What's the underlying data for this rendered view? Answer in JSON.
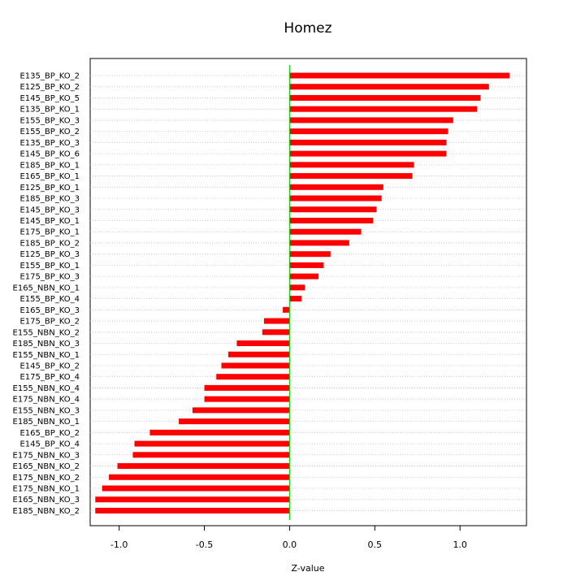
{
  "chart_data": {
    "type": "bar",
    "orientation": "horizontal",
    "title": "Homez",
    "xlabel": "Z-value",
    "ylabel": "",
    "xlim": [
      -1.17,
      1.39
    ],
    "xticks": [
      -1.0,
      -0.5,
      0.0,
      0.5,
      1.0
    ],
    "xtick_labels": [
      "-1.0",
      "-0.5",
      "0.0",
      "0.5",
      "1.0"
    ],
    "grid": "horizontal dotted",
    "bar_color": "#ff0000",
    "zero_line_color": "#00cc00",
    "categories": [
      "E135_BP_KO_2",
      "E125_BP_KO_2",
      "E145_BP_KO_5",
      "E135_BP_KO_1",
      "E155_BP_KO_3",
      "E155_BP_KO_2",
      "E135_BP_KO_3",
      "E145_BP_KO_6",
      "E185_BP_KO_1",
      "E165_BP_KO_1",
      "E125_BP_KO_1",
      "E185_BP_KO_3",
      "E145_BP_KO_3",
      "E145_BP_KO_1",
      "E175_BP_KO_1",
      "E185_BP_KO_2",
      "E125_BP_KO_3",
      "E155_BP_KO_1",
      "E175_BP_KO_3",
      "E165_NBN_KO_1",
      "E155_BP_KO_4",
      "E165_BP_KO_3",
      "E175_BP_KO_2",
      "E155_NBN_KO_2",
      "E185_NBN_KO_3",
      "E155_NBN_KO_1",
      "E145_BP_KO_2",
      "E175_BP_KO_4",
      "E155_NBN_KO_4",
      "E175_NBN_KO_4",
      "E155_NBN_KO_3",
      "E185_NBN_KO_1",
      "E165_BP_KO_2",
      "E145_BP_KO_4",
      "E175_NBN_KO_3",
      "E165_NBN_KO_2",
      "E175_NBN_KO_2",
      "E175_NBN_KO_1",
      "E165_NBN_KO_3",
      "E185_NBN_KO_2"
    ],
    "values": [
      1.29,
      1.17,
      1.12,
      1.1,
      0.96,
      0.93,
      0.92,
      0.92,
      0.73,
      0.72,
      0.55,
      0.54,
      0.51,
      0.49,
      0.42,
      0.35,
      0.24,
      0.2,
      0.17,
      0.09,
      0.07,
      -0.04,
      -0.15,
      -0.16,
      -0.31,
      -0.36,
      -0.4,
      -0.43,
      -0.5,
      -0.5,
      -0.57,
      -0.65,
      -0.82,
      -0.91,
      -0.92,
      -1.01,
      -1.06,
      -1.1,
      -1.14,
      -1.14
    ]
  }
}
